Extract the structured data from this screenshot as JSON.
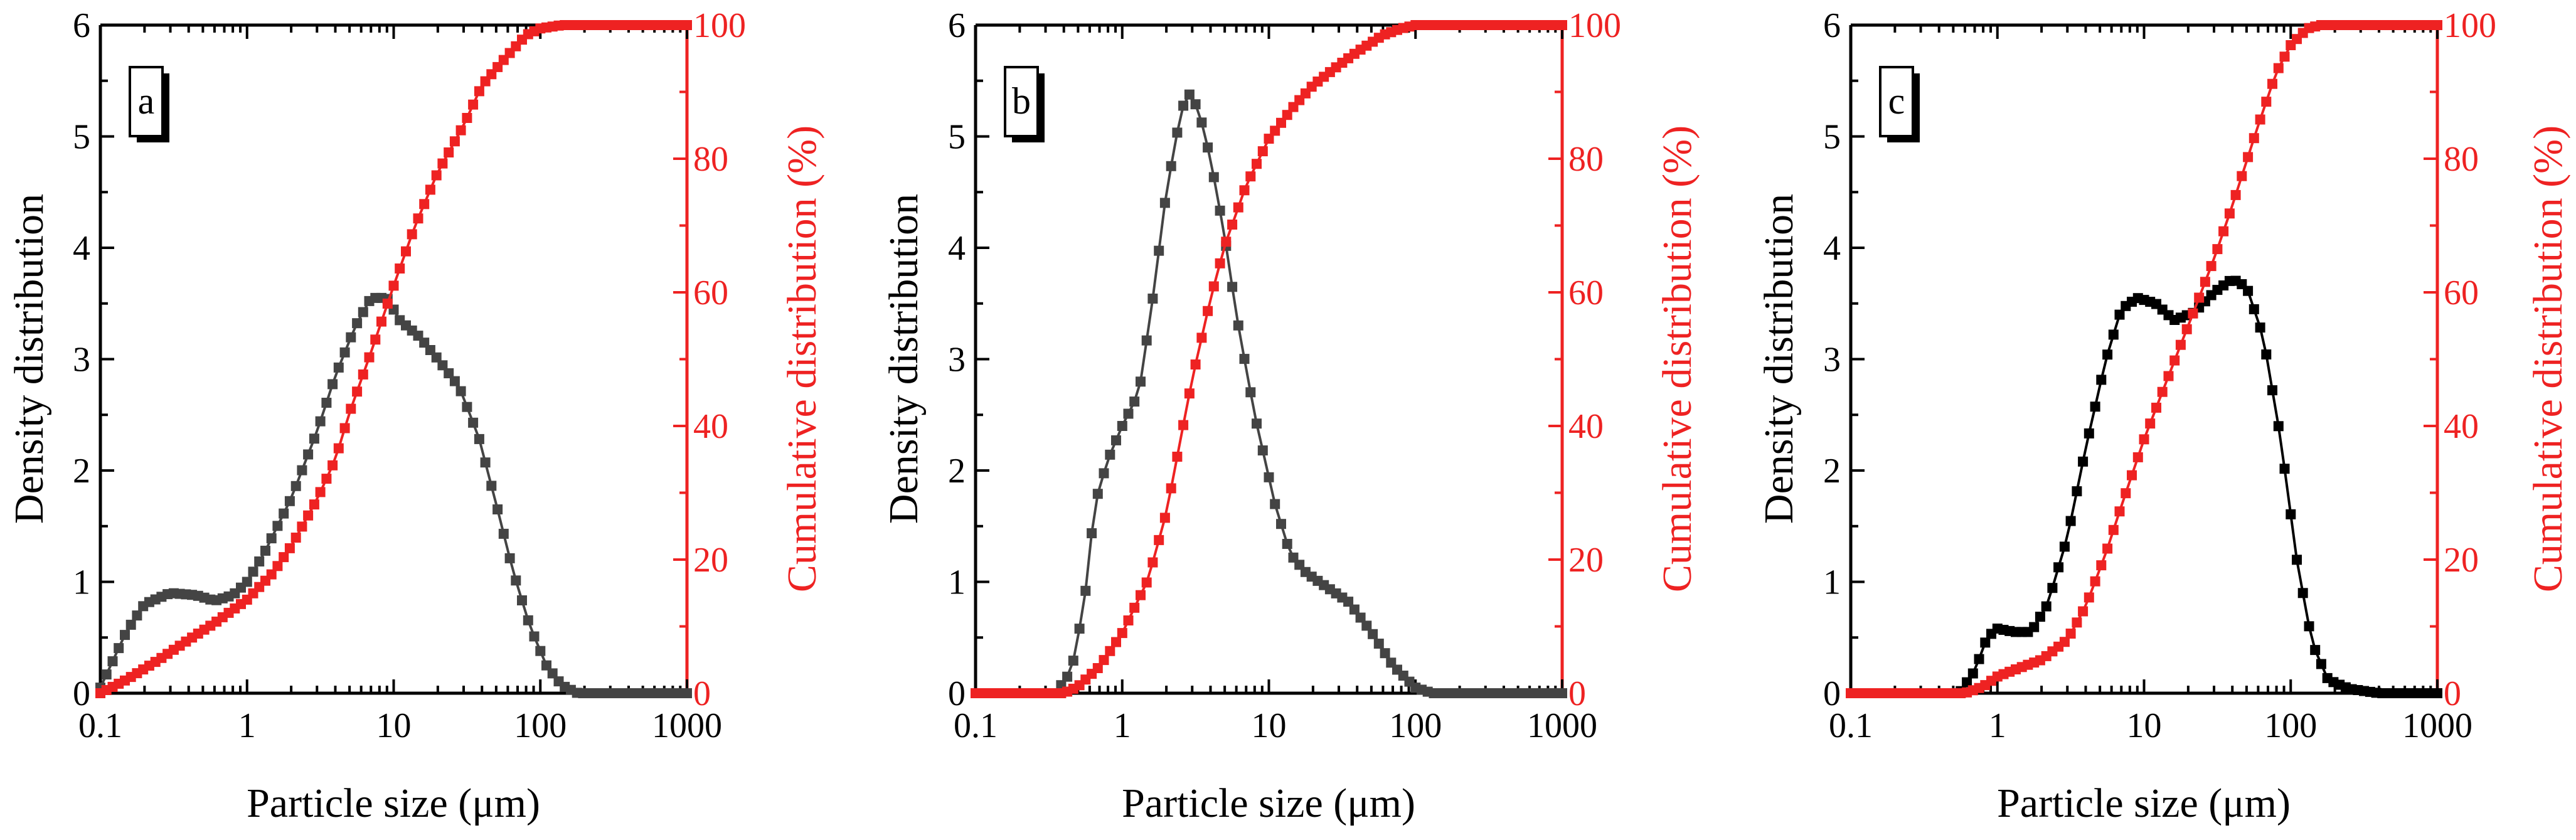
{
  "colors": {
    "density": "#444444",
    "density_c": "#000000",
    "cumulative": "#ee2222"
  },
  "chart_data": [
    {
      "type": "line",
      "panel": "a",
      "xlabel": "Particle size (μm)",
      "ylabel": "Density distribution",
      "y2label": "Cumulative distribution (%)",
      "xscale": "log",
      "xlim": [
        0.1,
        1000
      ],
      "ylim": [
        0,
        6
      ],
      "y2lim": [
        0,
        100
      ],
      "xticks": [
        "0.1",
        "1",
        "10",
        "100",
        "1000"
      ],
      "yticks": [
        "0",
        "1",
        "2",
        "3",
        "4",
        "5",
        "6"
      ],
      "y2ticks": [
        "0",
        "20",
        "40",
        "60",
        "80",
        "100"
      ],
      "series": [
        {
          "name": "Density distribution",
          "axis": "left",
          "color": "#444444",
          "points": [
            [
              0.1,
              0.05
            ],
            [
              0.15,
              0.55
            ],
            [
              0.2,
              0.8
            ],
            [
              0.3,
              0.9
            ],
            [
              0.45,
              0.88
            ],
            [
              0.6,
              0.83
            ],
            [
              0.8,
              0.88
            ],
            [
              1,
              1.0
            ],
            [
              1.3,
              1.25
            ],
            [
              2,
              1.75
            ],
            [
              3,
              2.35
            ],
            [
              4,
              2.85
            ],
            [
              5.5,
              3.3
            ],
            [
              7,
              3.55
            ],
            [
              9,
              3.55
            ],
            [
              11,
              3.35
            ],
            [
              15,
              3.2
            ],
            [
              20,
              3.0
            ],
            [
              28,
              2.75
            ],
            [
              38,
              2.3
            ],
            [
              50,
              1.7
            ],
            [
              65,
              1.1
            ],
            [
              85,
              0.6
            ],
            [
              110,
              0.25
            ],
            [
              140,
              0.07
            ],
            [
              180,
              0.0
            ],
            [
              1000,
              0.0
            ]
          ]
        },
        {
          "name": "Cumulative distribution",
          "axis": "right",
          "color": "#ee2222",
          "points": [
            [
              0.1,
              0
            ],
            [
              0.15,
              2
            ],
            [
              0.25,
              5
            ],
            [
              0.4,
              8
            ],
            [
              0.6,
              10.5
            ],
            [
              1,
              14
            ],
            [
              1.5,
              18
            ],
            [
              2,
              22
            ],
            [
              3,
              29
            ],
            [
              4,
              35
            ],
            [
              5,
              42
            ],
            [
              7,
              51
            ],
            [
              10,
              61
            ],
            [
              14,
              70
            ],
            [
              20,
              78
            ],
            [
              30,
              85
            ],
            [
              40,
              91
            ],
            [
              60,
              95.5
            ],
            [
              80,
              98.5
            ],
            [
              100,
              99.5
            ],
            [
              140,
              100
            ],
            [
              1000,
              100
            ]
          ]
        }
      ]
    },
    {
      "type": "line",
      "panel": "b",
      "xlabel": "Particle size (μm)",
      "ylabel": "Density distribution",
      "y2label": "Cumulative distribution (%)",
      "xscale": "log",
      "xlim": [
        0.1,
        1000
      ],
      "ylim": [
        0,
        6
      ],
      "y2lim": [
        0,
        100
      ],
      "xticks": [
        "0.1",
        "1",
        "10",
        "100",
        "1000"
      ],
      "yticks": [
        "0",
        "1",
        "2",
        "3",
        "4",
        "5",
        "6"
      ],
      "y2ticks": [
        "0",
        "20",
        "40",
        "60",
        "80",
        "100"
      ],
      "series": [
        {
          "name": "Density distribution",
          "axis": "left",
          "color": "#444444",
          "points": [
            [
              0.1,
              0
            ],
            [
              0.35,
              0
            ],
            [
              0.45,
              0.2
            ],
            [
              0.55,
              0.8
            ],
            [
              0.65,
              1.7
            ],
            [
              0.8,
              2.1
            ],
            [
              1,
              2.4
            ],
            [
              1.3,
              2.7
            ],
            [
              1.6,
              3.5
            ],
            [
              2,
              4.5
            ],
            [
              2.5,
              5.2
            ],
            [
              2.8,
              5.4
            ],
            [
              3.3,
              5.25
            ],
            [
              4,
              4.8
            ],
            [
              5,
              4.1
            ],
            [
              6,
              3.4
            ],
            [
              8,
              2.5
            ],
            [
              11,
              1.7
            ],
            [
              14,
              1.25
            ],
            [
              18,
              1.08
            ],
            [
              25,
              0.95
            ],
            [
              35,
              0.82
            ],
            [
              50,
              0.55
            ],
            [
              70,
              0.25
            ],
            [
              100,
              0.05
            ],
            [
              130,
              0.0
            ],
            [
              1000,
              0.0
            ]
          ]
        },
        {
          "name": "Cumulative distribution",
          "axis": "right",
          "color": "#ee2222",
          "points": [
            [
              0.1,
              0
            ],
            [
              0.4,
              0
            ],
            [
              0.5,
              1
            ],
            [
              0.7,
              4
            ],
            [
              1,
              9
            ],
            [
              1.5,
              17
            ],
            [
              2,
              27
            ],
            [
              2.5,
              38
            ],
            [
              3,
              47
            ],
            [
              4,
              59
            ],
            [
              5,
              67
            ],
            [
              7,
              76
            ],
            [
              10,
              83
            ],
            [
              15,
              88
            ],
            [
              20,
              91
            ],
            [
              30,
              94
            ],
            [
              40,
              96
            ],
            [
              60,
              98.5
            ],
            [
              80,
              99.5
            ],
            [
              100,
              100
            ],
            [
              1000,
              100
            ]
          ]
        }
      ]
    },
    {
      "type": "line",
      "panel": "c",
      "xlabel": "Particle size (μm)",
      "ylabel": "Density distribution",
      "y2label": "Cumulative distribution (%)",
      "xscale": "log",
      "xlim": [
        0.1,
        1000
      ],
      "ylim": [
        0,
        6
      ],
      "y2lim": [
        0,
        100
      ],
      "xticks": [
        "0.1",
        "1",
        "10",
        "100",
        "1000"
      ],
      "yticks": [
        "0",
        "1",
        "2",
        "3",
        "4",
        "5",
        "6"
      ],
      "y2ticks": [
        "0",
        "20",
        "40",
        "60",
        "80",
        "100"
      ],
      "series": [
        {
          "name": "Density distribution",
          "axis": "left",
          "color": "#000000",
          "points": [
            [
              0.1,
              0
            ],
            [
              0.55,
              0
            ],
            [
              0.7,
              0.2
            ],
            [
              0.85,
              0.5
            ],
            [
              1,
              0.58
            ],
            [
              1.3,
              0.55
            ],
            [
              1.7,
              0.55
            ],
            [
              2.2,
              0.8
            ],
            [
              3,
              1.4
            ],
            [
              4,
              2.2
            ],
            [
              5.5,
              3.0
            ],
            [
              7,
              3.45
            ],
            [
              9,
              3.55
            ],
            [
              12,
              3.5
            ],
            [
              16,
              3.35
            ],
            [
              22,
              3.42
            ],
            [
              30,
              3.6
            ],
            [
              40,
              3.72
            ],
            [
              50,
              3.65
            ],
            [
              65,
              3.2
            ],
            [
              85,
              2.3
            ],
            [
              110,
              1.2
            ],
            [
              140,
              0.45
            ],
            [
              180,
              0.12
            ],
            [
              250,
              0.04
            ],
            [
              400,
              0.0
            ],
            [
              1000,
              0.0
            ]
          ]
        },
        {
          "name": "Cumulative distribution",
          "axis": "right",
          "color": "#ee2222",
          "points": [
            [
              0.1,
              0
            ],
            [
              0.6,
              0
            ],
            [
              0.8,
              1
            ],
            [
              1,
              2.5
            ],
            [
              1.5,
              4
            ],
            [
              2,
              5
            ],
            [
              3,
              8
            ],
            [
              4,
              13
            ],
            [
              5.5,
              21
            ],
            [
              7,
              28
            ],
            [
              10,
              38
            ],
            [
              15,
              48
            ],
            [
              20,
              55
            ],
            [
              30,
              65
            ],
            [
              40,
              73
            ],
            [
              60,
              85
            ],
            [
              80,
              93
            ],
            [
              100,
              97
            ],
            [
              130,
              99.5
            ],
            [
              160,
              100
            ],
            [
              1000,
              100
            ]
          ]
        }
      ]
    }
  ]
}
